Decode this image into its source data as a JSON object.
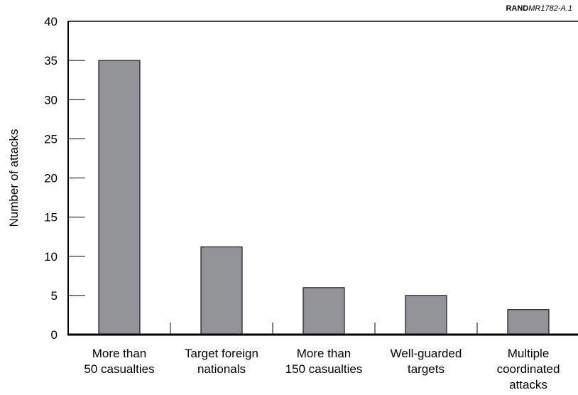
{
  "source_tag": {
    "org": "RAND",
    "code": "MR1782-A.1"
  },
  "colors": {
    "bar_fill": "#929396",
    "bar_stroke": "#1a1a1a",
    "axis": "#000000"
  },
  "chart_data": {
    "type": "bar",
    "title": "",
    "xlabel": "",
    "ylabel": "Number of attacks",
    "ylim": [
      0,
      40
    ],
    "yticks": [
      0,
      5,
      10,
      15,
      20,
      25,
      30,
      35,
      40
    ],
    "grid": false,
    "categories": [
      [
        "More than",
        "50 casualties"
      ],
      [
        "Target foreign",
        "nationals"
      ],
      [
        "More than",
        "150 casualties"
      ],
      [
        "Well-guarded",
        "targets"
      ],
      [
        "Multiple",
        "coordinated",
        "attacks"
      ]
    ],
    "values": [
      35,
      11.2,
      6,
      5,
      3.2
    ]
  }
}
